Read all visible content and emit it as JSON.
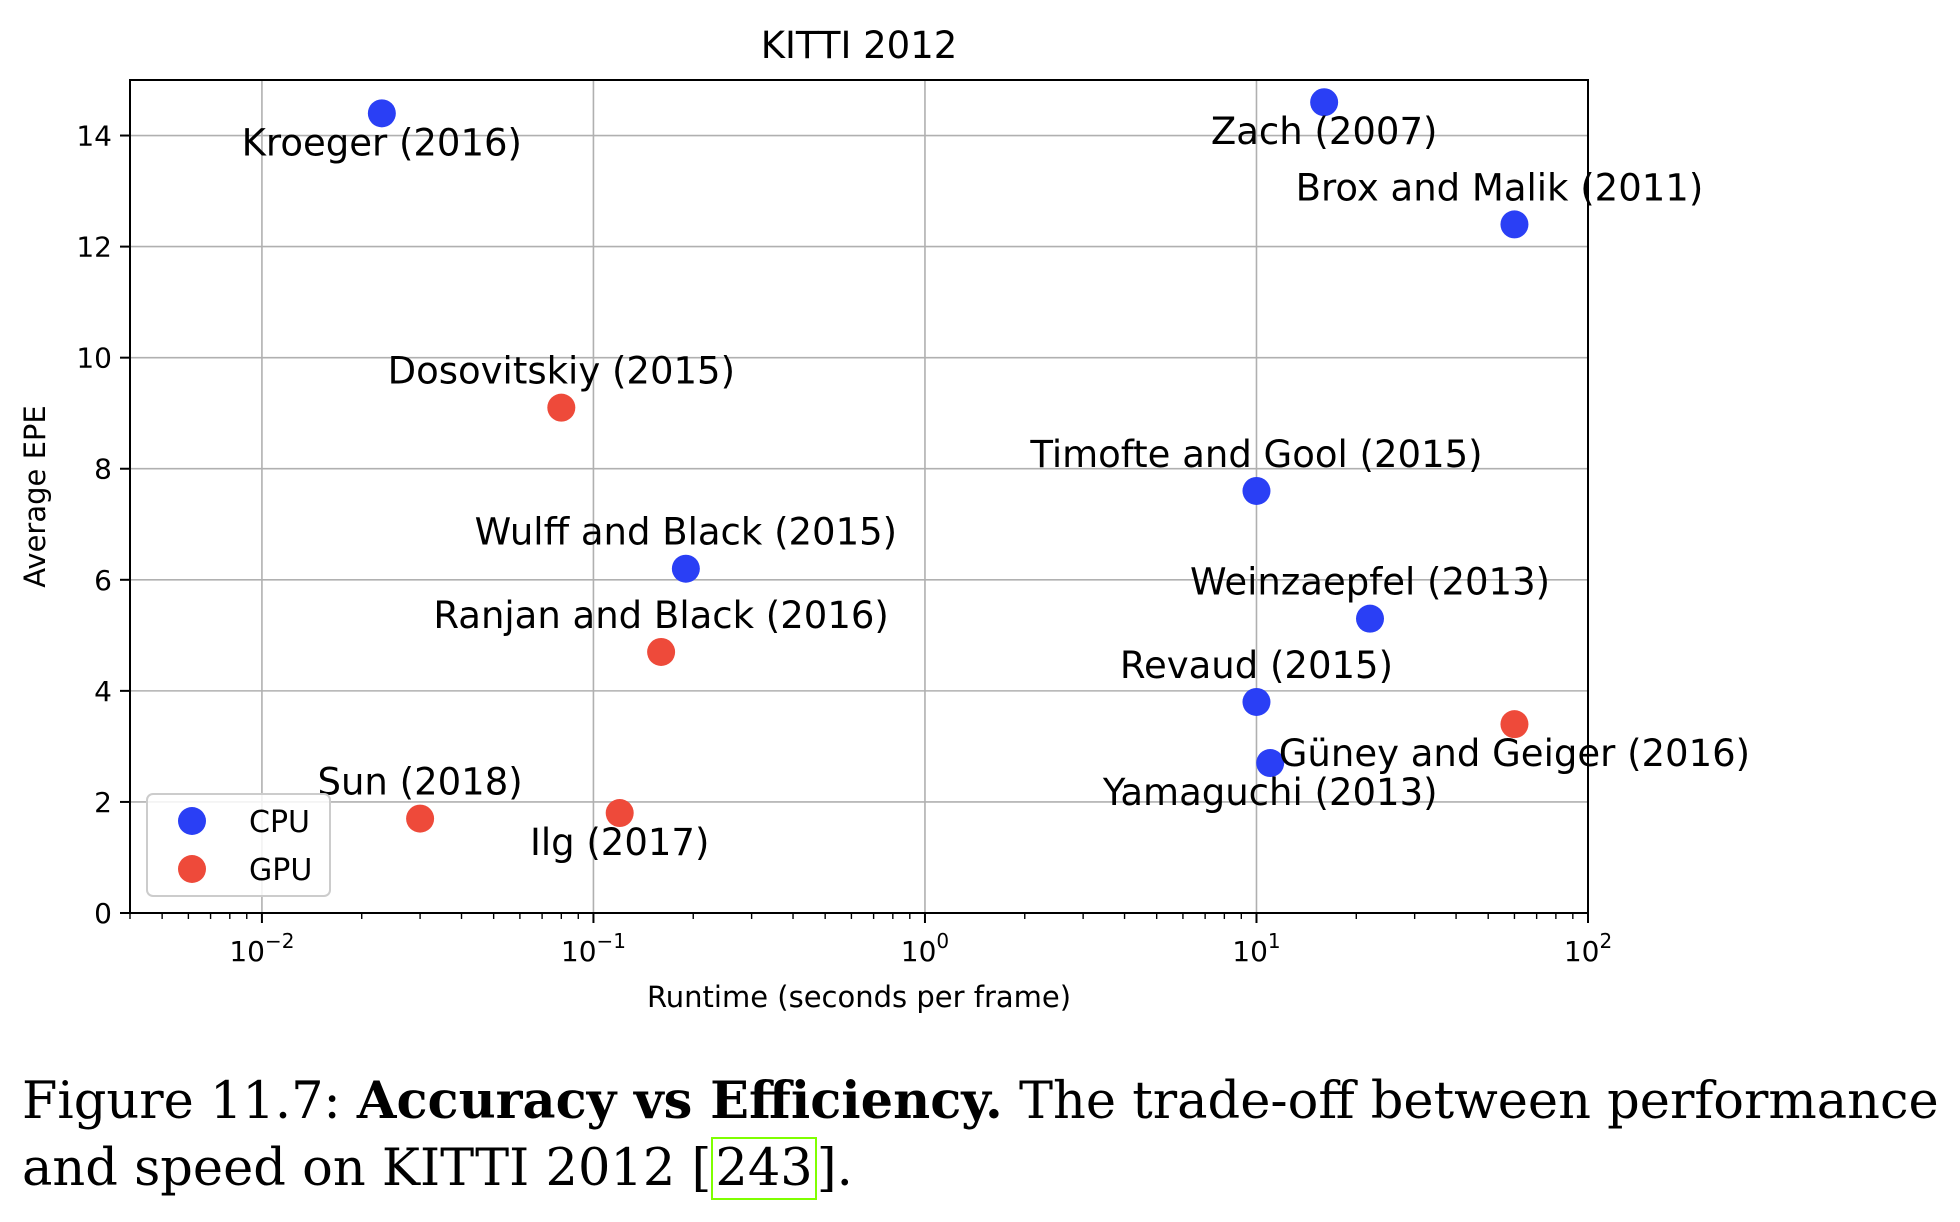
{
  "chart_data": {
    "type": "scatter",
    "title": "KITTI 2012",
    "xlabel": "Runtime (seconds per frame)",
    "ylabel": "Average EPE",
    "xscale": "log",
    "xlim": [
      0.004,
      100
    ],
    "ylim": [
      0,
      15
    ],
    "xticks": [
      {
        "value": 0.01,
        "base": "10",
        "exp": "−2"
      },
      {
        "value": 0.1,
        "base": "10",
        "exp": "−1"
      },
      {
        "value": 1,
        "base": "10",
        "exp": "0"
      },
      {
        "value": 10,
        "base": "10",
        "exp": "1"
      },
      {
        "value": 100,
        "base": "10",
        "exp": "2"
      }
    ],
    "yticks": [
      0,
      2,
      4,
      6,
      8,
      10,
      12,
      14
    ],
    "grid": true,
    "legend_position": "lower-left",
    "series": [
      {
        "name": "CPU",
        "color": "#2a3ff5",
        "points": [
          {
            "label": "Kroeger (2016)",
            "x": 0.023,
            "y": 14.4,
            "label_pos": "below"
          },
          {
            "label": "Zach (2007)",
            "x": 16,
            "y": 14.6,
            "label_pos": "below"
          },
          {
            "label": "Brox and Malik (2011)",
            "x": 60,
            "y": 12.4,
            "label_pos": "above-left"
          },
          {
            "label": "Timofte and Gool (2015)",
            "x": 10,
            "y": 7.6,
            "label_pos": "above"
          },
          {
            "label": "Wulff and Black (2015)",
            "x": 0.19,
            "y": 6.2,
            "label_pos": "above"
          },
          {
            "label": "Weinzaepfel (2013)",
            "x": 22,
            "y": 5.3,
            "label_pos": "above"
          },
          {
            "label": "Revaud (2015)",
            "x": 10,
            "y": 3.8,
            "label_pos": "above"
          },
          {
            "label": "Yamaguchi (2013)",
            "x": 11,
            "y": 2.7,
            "label_pos": "below"
          }
        ]
      },
      {
        "name": "GPU",
        "color": "#ee4a3a",
        "points": [
          {
            "label": "Dosovitskiy (2015)",
            "x": 0.08,
            "y": 9.1,
            "label_pos": "above"
          },
          {
            "label": "Ranjan and Black (2016)",
            "x": 0.16,
            "y": 4.7,
            "label_pos": "above"
          },
          {
            "label": "Güney and Geiger (2016)",
            "x": 60,
            "y": 3.4,
            "label_pos": "below"
          },
          {
            "label": "Sun (2018)",
            "x": 0.03,
            "y": 1.7,
            "label_pos": "above"
          },
          {
            "label": "Ilg (2017)",
            "x": 0.12,
            "y": 1.8,
            "label_pos": "below"
          }
        ]
      }
    ]
  },
  "caption": {
    "prefix": "Figure 11.7:",
    "bold": "Accuracy vs Efficiency.",
    "text1": "The trade-off between performance and speed on KITTI 2012",
    "citation": "243",
    "suffix": "."
  }
}
